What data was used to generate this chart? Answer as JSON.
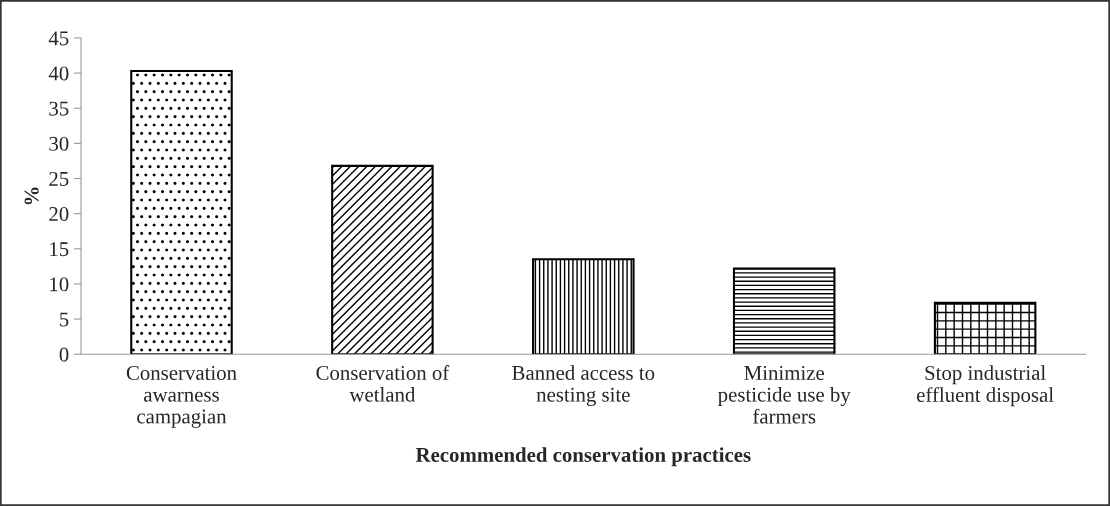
{
  "chart_data": {
    "type": "bar",
    "xlabel": "Recommended conservation practices",
    "ylabel": "%",
    "categories": [
      "Conservation\nawarness\ncampagian",
      "Conservation of\nwetland",
      "Banned access to\nnesting site",
      "Minimize\npesticide use by\nfarmers",
      "Stop industrial\neffluent disposal"
    ],
    "values": [
      40.3,
      26.8,
      13.5,
      12.2,
      7.3
    ],
    "color": "#000000",
    "ylim": [
      0,
      45
    ],
    "yticks": [
      0,
      5,
      10,
      15,
      20,
      25,
      30,
      35,
      40,
      45
    ],
    "grid": false,
    "legend": false
  }
}
